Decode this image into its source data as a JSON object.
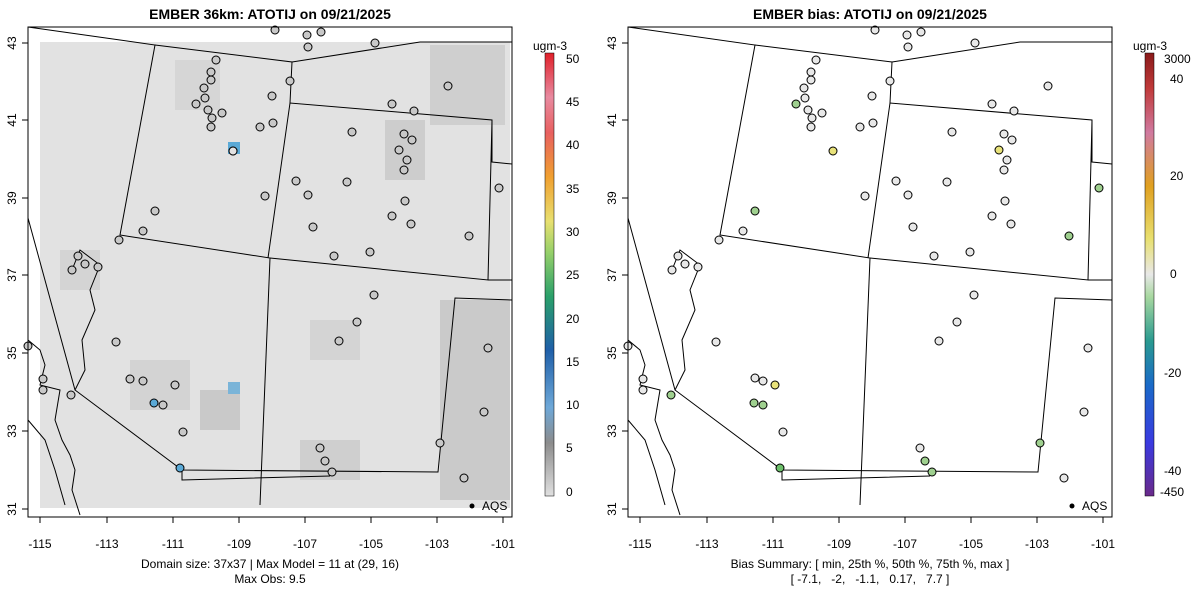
{
  "left": {
    "title": "EMBER 36km: ATOTIJ on 09/21/2025",
    "units": "ugm-3",
    "colorbar_ticks": [
      "0",
      "5",
      "10",
      "15",
      "20",
      "25",
      "30",
      "35",
      "40",
      "45",
      "50"
    ],
    "legend": "AQS",
    "footer_line1": "Domain size: 37x37 | Max Model = 11 at (29, 16)",
    "footer_line2": "Max Obs: 9.5"
  },
  "right": {
    "title": "EMBER bias: ATOTIJ on 09/21/2025",
    "units": "ugm-3",
    "colorbar_ticks": [
      "3000",
      "40",
      "20",
      "0",
      "-20",
      "-40",
      "-450"
    ],
    "legend": "AQS",
    "footer_line1": "Bias Summary: [ min, 25th %, 50th %, 75th %, max ]",
    "footer_line2": "[ -7.1,   -2,   -1.1,   0.17,   7.7 ]"
  },
  "axes": {
    "x_ticks": [
      "-115",
      "-113",
      "-111",
      "-109",
      "-107",
      "-105",
      "-103",
      "-101"
    ],
    "y_ticks": [
      "43",
      "41",
      "39",
      "37",
      "35",
      "33",
      "31"
    ]
  },
  "colors": {
    "background_gray": "#e3e3e3",
    "model_max_blue": "#5aa9d6",
    "observed_marker": "#c8c8c8",
    "bias_neutral": "#e8e8e8",
    "bias_green": "#9fd08f",
    "bias_yellow": "#e8e27a"
  },
  "map_data": {
    "lon_range": [
      -115.3,
      -100.7
    ],
    "lat_range": [
      30.9,
      43.2
    ],
    "max_model_value": 11,
    "max_model_cell": "(29, 16)",
    "max_obs": 9.5,
    "bias_summary": {
      "min": -7.1,
      "p25": -2,
      "p50": -1.1,
      "p75": 0.17,
      "max": 7.7
    }
  }
}
